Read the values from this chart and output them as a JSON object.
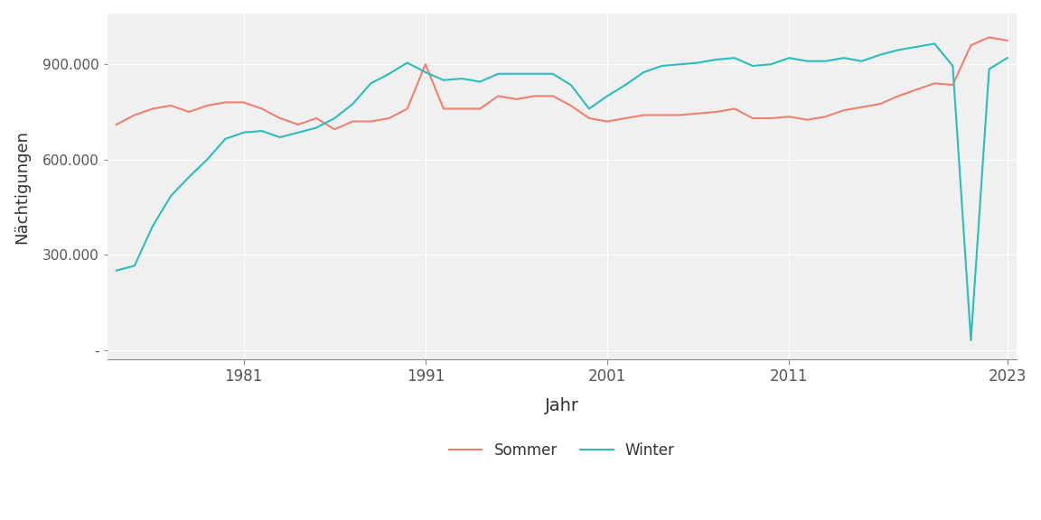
{
  "title": "",
  "xlabel": "Jahr",
  "ylabel": "Nächtigungen",
  "sommer_color": "#F08070",
  "winter_color": "#2BBDBB",
  "background_color": "#FFFFFF",
  "plot_bg_color": "#F0F0F0",
  "grid_color": "#FFFFFF",
  "legend_labels": [
    "Sommer",
    "Winter"
  ],
  "years": [
    1974,
    1975,
    1976,
    1977,
    1978,
    1979,
    1980,
    1981,
    1982,
    1983,
    1984,
    1985,
    1986,
    1987,
    1988,
    1989,
    1990,
    1991,
    1992,
    1993,
    1994,
    1995,
    1996,
    1997,
    1998,
    1999,
    2000,
    2001,
    2002,
    2003,
    2004,
    2005,
    2006,
    2007,
    2008,
    2009,
    2010,
    2011,
    2012,
    2013,
    2014,
    2015,
    2016,
    2017,
    2018,
    2019,
    2020,
    2021,
    2022,
    2023
  ],
  "sommer": [
    710000,
    740000,
    760000,
    770000,
    750000,
    770000,
    780000,
    780000,
    760000,
    730000,
    710000,
    730000,
    695000,
    720000,
    720000,
    730000,
    760000,
    900000,
    760000,
    760000,
    760000,
    800000,
    790000,
    800000,
    800000,
    770000,
    730000,
    720000,
    730000,
    740000,
    740000,
    740000,
    745000,
    750000,
    760000,
    730000,
    730000,
    735000,
    725000,
    735000,
    755000,
    765000,
    775000,
    800000,
    820000,
    840000,
    835000,
    960000,
    985000,
    975000
  ],
  "winter": [
    250000,
    265000,
    390000,
    485000,
    545000,
    600000,
    665000,
    685000,
    690000,
    670000,
    685000,
    700000,
    730000,
    775000,
    840000,
    870000,
    905000,
    875000,
    850000,
    855000,
    845000,
    870000,
    870000,
    870000,
    870000,
    835000,
    760000,
    800000,
    835000,
    875000,
    895000,
    900000,
    905000,
    915000,
    920000,
    895000,
    900000,
    920000,
    910000,
    910000,
    920000,
    910000,
    930000,
    945000,
    955000,
    965000,
    895000,
    30000,
    885000,
    920000
  ],
  "ylim": [
    -30000,
    1060000
  ],
  "yticks": [
    0,
    300000,
    600000,
    900000
  ],
  "ytick_labels": [
    "-",
    "300.000",
    "600.000",
    "900.000"
  ],
  "xtick_positions": [
    1981,
    1991,
    2001,
    2011,
    2023
  ],
  "linewidth": 1.5
}
